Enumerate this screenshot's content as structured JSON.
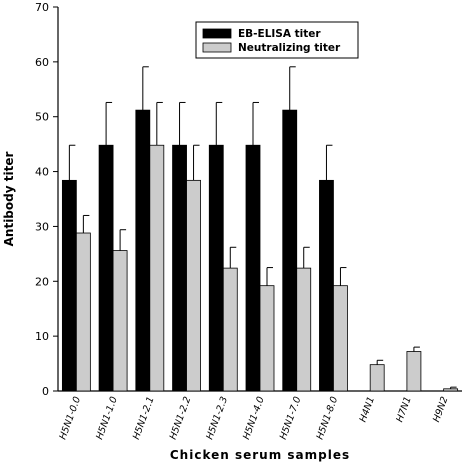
{
  "chart_data": {
    "type": "bar",
    "title": "",
    "xlabel": "Chicken serum samples",
    "ylabel": "Antibody titer",
    "ylim": [
      0,
      70
    ],
    "yticks": [
      0,
      10,
      20,
      30,
      40,
      50,
      60,
      70
    ],
    "categories": [
      "H5N1-0.0",
      "H5N1-1.0",
      "H5N1-2.1",
      "H5N1-2.2",
      "H5N1-2.3",
      "H5N1-4.0",
      "H5N1-7.0",
      "H5N1-8.0",
      "H4N1",
      "H7N1",
      "H9N2"
    ],
    "series": [
      {
        "name": "EB-ELISA titer",
        "color": "#000000",
        "values": [
          38.4,
          44.8,
          51.2,
          44.8,
          44.8,
          44.8,
          51.2,
          38.4,
          0,
          0,
          0
        ],
        "errors": [
          6.4,
          7.8,
          7.9,
          7.8,
          7.8,
          7.8,
          7.9,
          6.4,
          0,
          0,
          0
        ]
      },
      {
        "name": "Neutralizing titer",
        "color": "#cccccc",
        "values": [
          28.8,
          25.6,
          44.8,
          38.4,
          22.4,
          19.2,
          22.4,
          19.2,
          4.8,
          7.2,
          0.4
        ],
        "errors": [
          3.2,
          3.8,
          7.8,
          6.4,
          3.8,
          3.3,
          3.8,
          3.3,
          0.8,
          0.8,
          0.3
        ]
      }
    ],
    "grid": false,
    "legend_position": "top-right"
  }
}
